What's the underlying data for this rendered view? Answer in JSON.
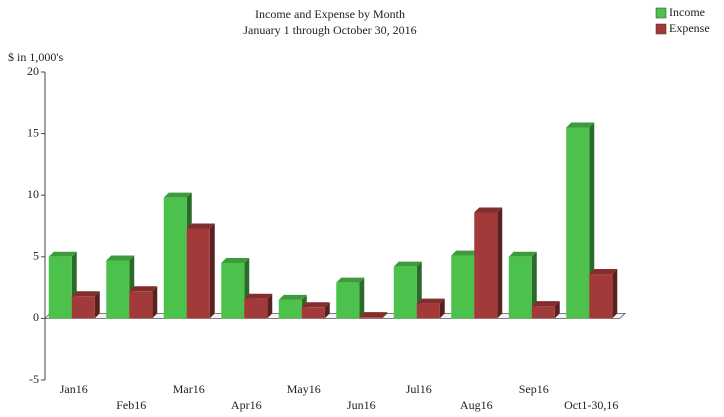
{
  "chart_data": {
    "type": "bar",
    "title": "Income and Expense by Month",
    "subtitle": "January 1 through October 30, 2016",
    "y_label": "$ in 1,000's",
    "categories": [
      "Jan16",
      "Feb16",
      "Mar16",
      "Apr16",
      "May16",
      "Jun16",
      "Jul16",
      "Aug16",
      "Sep16",
      "Oct1-30,16"
    ],
    "series": [
      {
        "name": "Income",
        "color": "#4cc24c",
        "values": [
          5.0,
          4.7,
          9.8,
          4.5,
          1.5,
          2.9,
          4.2,
          5.1,
          5.0,
          15.5
        ]
      },
      {
        "name": "Expense",
        "color": "#a33a3a",
        "values": [
          1.8,
          2.2,
          7.3,
          1.6,
          0.9,
          0.1,
          1.2,
          8.6,
          1.0,
          3.6
        ]
      }
    ],
    "ylim": [
      -5,
      20
    ],
    "yticks": [
      -5,
      0,
      5,
      10,
      15,
      20
    ],
    "legend": "top-right"
  }
}
